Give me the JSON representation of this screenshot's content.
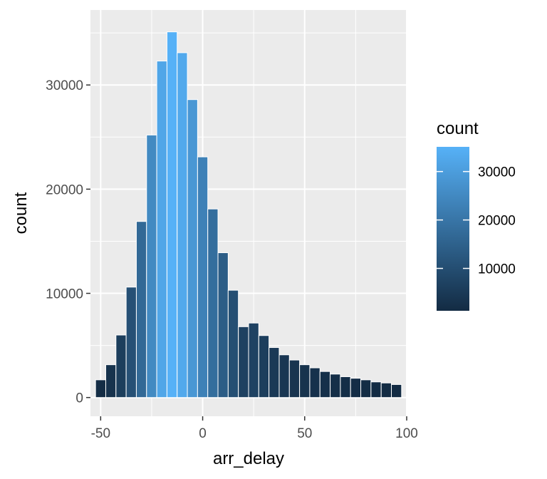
{
  "chart_data": {
    "type": "bar",
    "xlabel": "arr_delay",
    "ylabel": "count",
    "xlim": [
      -55,
      100
    ],
    "ylim": [
      -1800,
      37200
    ],
    "x_ticks": [
      -50,
      0,
      50,
      100
    ],
    "x_tick_labels": [
      "-50",
      "0",
      "50",
      "100"
    ],
    "y_ticks": [
      0,
      10000,
      20000,
      30000
    ],
    "y_tick_labels": [
      "0",
      "10000",
      "20000",
      "30000"
    ],
    "binwidth": 5,
    "bins": [
      {
        "x": -50,
        "count": 1700
      },
      {
        "x": -45,
        "count": 3150
      },
      {
        "x": -40,
        "count": 6000
      },
      {
        "x": -35,
        "count": 10600
      },
      {
        "x": -30,
        "count": 16900
      },
      {
        "x": -25,
        "count": 25200
      },
      {
        "x": -20,
        "count": 32300
      },
      {
        "x": -15,
        "count": 35100
      },
      {
        "x": -10,
        "count": 33100
      },
      {
        "x": -5,
        "count": 28600
      },
      {
        "x": 0,
        "count": 23100
      },
      {
        "x": 5,
        "count": 18100
      },
      {
        "x": 10,
        "count": 13900
      },
      {
        "x": 15,
        "count": 10300
      },
      {
        "x": 20,
        "count": 6800
      },
      {
        "x": 25,
        "count": 7150
      },
      {
        "x": 30,
        "count": 5950
      },
      {
        "x": 35,
        "count": 4800
      },
      {
        "x": 40,
        "count": 4100
      },
      {
        "x": 45,
        "count": 3600
      },
      {
        "x": 50,
        "count": 3150
      },
      {
        "x": 55,
        "count": 2850
      },
      {
        "x": 60,
        "count": 2500
      },
      {
        "x": 65,
        "count": 2250
      },
      {
        "x": 70,
        "count": 2000
      },
      {
        "x": 75,
        "count": 1850
      },
      {
        "x": 80,
        "count": 1700
      },
      {
        "x": 85,
        "count": 1500
      },
      {
        "x": 90,
        "count": 1400
      },
      {
        "x": 95,
        "count": 1250
      }
    ],
    "legend": {
      "title": "count",
      "position": "right",
      "type": "colorbar",
      "range": [
        1250,
        35100
      ],
      "ticks": [
        10000,
        20000,
        30000
      ],
      "tick_labels": [
        "10000",
        "20000",
        "30000"
      ],
      "color_low": "#132B43",
      "color_high": "#56B1F7"
    },
    "panel_background": "#EBEBEB",
    "grid": true,
    "grid_color": "#FFFFFF"
  }
}
